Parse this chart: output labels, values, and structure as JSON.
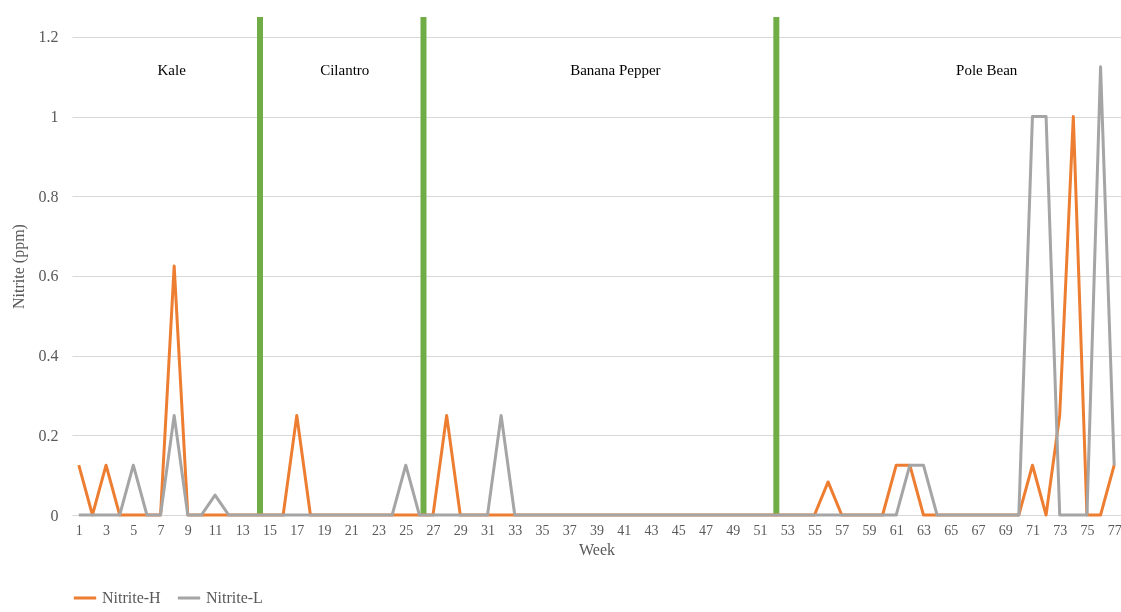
{
  "chart_data": {
    "type": "line",
    "xlabel": "Week",
    "ylabel": "Nitrite (ppm)",
    "x": [
      1,
      2,
      3,
      4,
      5,
      6,
      7,
      8,
      9,
      10,
      11,
      12,
      13,
      14,
      15,
      16,
      17,
      18,
      19,
      20,
      21,
      22,
      23,
      24,
      25,
      26,
      27,
      28,
      29,
      30,
      31,
      32,
      33,
      34,
      35,
      36,
      37,
      38,
      39,
      40,
      41,
      42,
      43,
      44,
      45,
      46,
      47,
      48,
      49,
      50,
      51,
      52,
      53,
      54,
      55,
      56,
      57,
      58,
      59,
      60,
      61,
      62,
      63,
      64,
      65,
      66,
      67,
      68,
      69,
      70,
      71,
      72,
      73,
      74,
      75,
      76,
      77
    ],
    "xlim": [
      0.5,
      77.5
    ],
    "xticks": [
      1,
      3,
      5,
      7,
      9,
      11,
      13,
      15,
      17,
      19,
      21,
      23,
      25,
      27,
      29,
      31,
      33,
      35,
      37,
      39,
      41,
      43,
      45,
      47,
      49,
      51,
      53,
      55,
      57,
      59,
      61,
      63,
      65,
      67,
      69,
      71,
      73,
      75,
      77
    ],
    "ylim": [
      0,
      1.25
    ],
    "yticks": [
      0,
      0.2,
      0.4,
      0.6,
      0.8,
      1,
      1.2
    ],
    "series": [
      {
        "name": "Nitrite-H",
        "color": "#ed7d31",
        "values": [
          0.125,
          0,
          0.125,
          0,
          0,
          0,
          0,
          0.625,
          0,
          0,
          0,
          0,
          0,
          0,
          0,
          0,
          0.25,
          0,
          0,
          0,
          0,
          0,
          0,
          0,
          0,
          0,
          0,
          0.25,
          0,
          0,
          0,
          0,
          0,
          0,
          0,
          0,
          0,
          0,
          0,
          0,
          0,
          0,
          0,
          0,
          0,
          0,
          0,
          0,
          0,
          0,
          0,
          0,
          0,
          0,
          0,
          0.083,
          0,
          0,
          0,
          0,
          0.125,
          0.125,
          0,
          0,
          0,
          0,
          0,
          0,
          0,
          0,
          0.125,
          0,
          0.25,
          1,
          0,
          0,
          0.125
        ]
      },
      {
        "name": "Nitrite-L",
        "color": "#a5a5a5",
        "values": [
          0,
          0,
          0,
          0,
          0.125,
          0,
          0,
          0.25,
          0,
          0,
          0.05,
          0,
          0,
          0,
          0,
          0,
          0,
          0,
          0,
          0,
          0,
          0,
          0,
          0,
          0.125,
          0,
          0,
          0,
          0,
          0,
          0,
          0.25,
          0,
          0,
          0,
          0,
          0,
          0,
          0,
          0,
          0,
          0,
          0,
          0,
          0,
          0,
          0,
          0,
          0,
          0,
          0,
          0,
          0,
          0,
          0,
          0,
          0,
          0,
          0,
          0,
          0,
          0.125,
          0.125,
          0,
          0,
          0,
          0,
          0,
          0,
          0,
          1,
          1,
          0,
          0,
          0,
          1.125,
          0.125
        ]
      }
    ],
    "ref_lines": [
      {
        "axis": "x",
        "value": 14.3,
        "color": "#70ad47"
      },
      {
        "axis": "x",
        "value": 26.3,
        "color": "#70ad47"
      },
      {
        "axis": "x",
        "value": 52.2,
        "color": "#70ad47"
      }
    ],
    "annotations": [
      "Kale",
      "Cilantro",
      "Banana Pepper",
      "Pole Bean"
    ],
    "grid": "y",
    "legend": "bottom",
    "marker": "none",
    "line_style": "solid"
  }
}
